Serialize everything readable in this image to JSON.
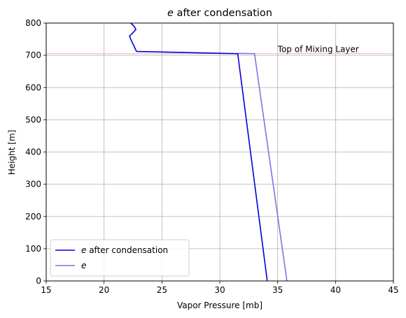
{
  "chart_data": {
    "type": "line",
    "title_prefix": "e",
    "title_suffix": " after condensation",
    "xlabel": "Vapor Pressure [mb]",
    "ylabel": "Height [m]",
    "xlim": [
      15,
      45
    ],
    "ylim": [
      0,
      800
    ],
    "xticks": [
      15,
      20,
      25,
      30,
      35,
      40,
      45
    ],
    "yticks": [
      0,
      100,
      200,
      300,
      400,
      500,
      600,
      700,
      800
    ],
    "grid": true,
    "legend_position": "lower-left",
    "series": [
      {
        "name_prefix": "e",
        "name_suffix": " after condensation",
        "color": "#0000dd",
        "alpha": 1.0,
        "points": [
          [
            34.1,
            0
          ],
          [
            31.55,
            705
          ],
          [
            22.8,
            712
          ],
          [
            22.7,
            720
          ],
          [
            22.5,
            735
          ],
          [
            22.3,
            750
          ],
          [
            22.2,
            760
          ],
          [
            22.5,
            770
          ],
          [
            22.75,
            780
          ],
          [
            22.6,
            790
          ],
          [
            22.3,
            800
          ]
        ]
      },
      {
        "name_prefix": "e",
        "name_suffix": "",
        "color": "#7777ee",
        "alpha": 1.0,
        "points": [
          [
            35.8,
            0
          ],
          [
            33.0,
            705
          ],
          [
            31.55,
            706
          ]
        ]
      }
    ],
    "hline": {
      "y": 705,
      "color": "#f4b4b4"
    },
    "annotation": {
      "text": "Top of Mixing Layer",
      "x": 35,
      "y": 712
    }
  }
}
